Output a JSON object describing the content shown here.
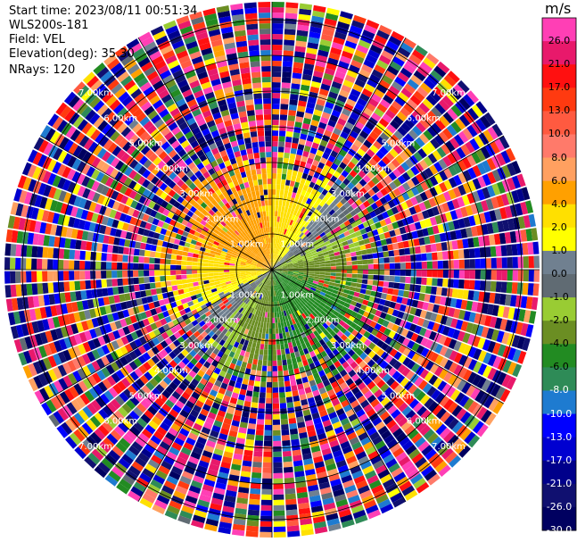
{
  "header": {
    "start_time": "Start time: 2023/08/11 00:51:34",
    "site": "WLS200s-181",
    "field": "Field: VEL",
    "elevation": "Elevation(deg): 35.30",
    "nrays": "NRays: 120"
  },
  "chart_data": {
    "type": "heatmap",
    "projection": "polar PPI (plan position indicator)",
    "field": "VEL",
    "units": "m/s",
    "n_rays": 120,
    "range_rings_km": [
      1.0,
      2.0,
      3.0,
      4.0,
      5.0,
      6.0,
      7.0
    ],
    "range_ring_labels": [
      "1.00km",
      "2.00km",
      "3.00km",
      "4.00km",
      "5.00km",
      "6.00km",
      "7.00km"
    ],
    "spoke_azimuths_deg": [
      0,
      30,
      60,
      90,
      120,
      150,
      180,
      210,
      240,
      270,
      300,
      330
    ],
    "max_range_km": 7.5,
    "dominant_pattern": {
      "inbound_sector": "north-west, approx. 4 to 6 m/s (orange)",
      "outbound_sector": "south-east, approx. -4 to -6 m/s (green)",
      "outer_ranges": "noisy, values spanning full scale"
    },
    "colorbar": {
      "title": "m/s",
      "vmin": -30.0,
      "vmax": 30.0,
      "tick_labels": [
        "26.0",
        "21.0",
        "17.0",
        "13.0",
        "10.0",
        "8.0",
        "6.0",
        "4.0",
        "2.0",
        "1.0",
        "0.0",
        "-1.0",
        "-2.0",
        "-4.0",
        "-6.0",
        "-8.0",
        "-10.0",
        "-13.0",
        "-17.0",
        "-21.0",
        "-26.0",
        "-30.0"
      ],
      "bin_edges": [
        30,
        26,
        21,
        17,
        13,
        10,
        8,
        6,
        4,
        2,
        1,
        0,
        -1,
        -2,
        -4,
        -6,
        -8,
        -10,
        -13,
        -17,
        -21,
        -26,
        -30
      ],
      "bin_colors": [
        "#ff3fb5",
        "#e8196b",
        "#ff1010",
        "#ff3a10",
        "#ff5a40",
        "#ff7a6a",
        "#ffa060",
        "#ffa000",
        "#ffe000",
        "#ffff00",
        "#708090",
        "#606b73",
        "#99cc33",
        "#6b8e23",
        "#228b22",
        "#2e8b57",
        "#1e7bd0",
        "#0000ff",
        "#0000d0",
        "#00008b",
        "#101070",
        "#000060"
      ]
    }
  }
}
